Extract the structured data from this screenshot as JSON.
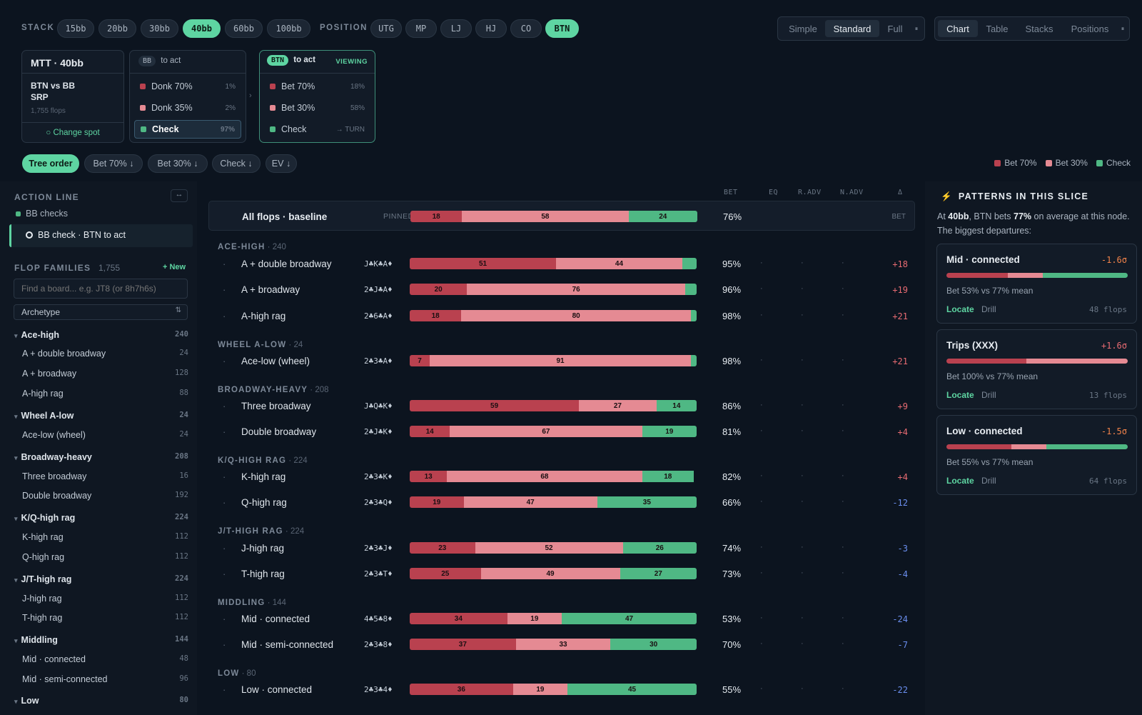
{
  "stack": {
    "label": "STACK",
    "options": [
      "15bb",
      "20bb",
      "30bb",
      "40bb",
      "60bb",
      "100bb"
    ],
    "active": 3
  },
  "position": {
    "label": "POSITION",
    "options": [
      "UTG",
      "MP",
      "LJ",
      "HJ",
      "CO",
      "BTN"
    ],
    "active": 5
  },
  "view_mode": {
    "options": [
      "Simple",
      "Standard",
      "Full"
    ],
    "active": 1,
    "icon": "pause-icon"
  },
  "view_tabs": {
    "options": [
      "Chart",
      "Table",
      "Stacks",
      "Positions"
    ],
    "active": 0,
    "icon": "pause-icon"
  },
  "spot": {
    "title": "MTT · 40bb",
    "line1": "BTN vs BB",
    "line2": "SRP",
    "flops": "1,755 flops",
    "change": "○ Change spot"
  },
  "bb_node": {
    "who": "BB",
    "act": "to act",
    "options": [
      {
        "label": "Donk 70%",
        "pct": "1%",
        "color": "#b9414f"
      },
      {
        "label": "Donk 35%",
        "pct": "2%",
        "color": "#e58a93"
      },
      {
        "label": "Check",
        "pct": "97%",
        "color": "#4fb884"
      }
    ]
  },
  "btn_node": {
    "who": "BTN",
    "act": "to act",
    "viewing": "VIEWING",
    "options": [
      {
        "label": "Bet 70%",
        "pct": "18%",
        "color": "#b9414f"
      },
      {
        "label": "Bet 30%",
        "pct": "58%",
        "color": "#e58a93"
      },
      {
        "label": "Check",
        "pct": "→ TURN",
        "color": "#4fb884"
      }
    ]
  },
  "sort_chips": [
    "Tree order",
    "Bet 70% ↓",
    "Bet 30% ↓",
    "Check ↓",
    "EV ↓"
  ],
  "legend": [
    {
      "label": "Bet 70%",
      "color": "#b9414f"
    },
    {
      "label": "Bet 30%",
      "color": "#e58a93"
    },
    {
      "label": "Check",
      "color": "#4fb884"
    }
  ],
  "action_line": {
    "title": "ACTION LINE",
    "icon": "↔",
    "items": [
      "BB checks",
      "BB check · BTN to act"
    ]
  },
  "flop_families": {
    "title": "FLOP FAMILIES",
    "count": "1,755",
    "new": "+ New",
    "search_placeholder": "Find a board... e.g. JT8 (or 8h7h6s)",
    "select": "Archetype"
  },
  "tree": [
    {
      "label": "Ace-high",
      "count": "240",
      "group": true
    },
    {
      "label": "A + double broadway",
      "count": "24"
    },
    {
      "label": "A + broadway",
      "count": "128"
    },
    {
      "label": "A-high rag",
      "count": "88"
    },
    {
      "label": "Wheel A-low",
      "count": "24",
      "group": true
    },
    {
      "label": "Ace-low (wheel)",
      "count": "24"
    },
    {
      "label": "Broadway-heavy",
      "count": "208",
      "group": true
    },
    {
      "label": "Three broadway",
      "count": "16"
    },
    {
      "label": "Double broadway",
      "count": "192"
    },
    {
      "label": "K/Q-high rag",
      "count": "224",
      "group": true
    },
    {
      "label": "K-high rag",
      "count": "112"
    },
    {
      "label": "Q-high rag",
      "count": "112"
    },
    {
      "label": "J/T-high rag",
      "count": "224",
      "group": true
    },
    {
      "label": "J-high rag",
      "count": "112"
    },
    {
      "label": "T-high rag",
      "count": "112"
    },
    {
      "label": "Middling",
      "count": "144",
      "group": true
    },
    {
      "label": "Mid · connected",
      "count": "48"
    },
    {
      "label": "Mid · semi-connected",
      "count": "96"
    },
    {
      "label": "Low",
      "count": "80",
      "group": true
    }
  ],
  "columns": [
    "BET",
    "EQ",
    "R.ADV",
    "N.ADV",
    "Δ"
  ],
  "baseline": {
    "label": "All flops · baseline",
    "pinned": "PINNED",
    "segs": [
      18,
      58,
      24
    ],
    "bet": "76%",
    "delta": "BET"
  },
  "groups": [
    {
      "name": "ACE-HIGH",
      "count": "240",
      "rows": [
        {
          "name": "A + double broadway",
          "board": "J♣K♣A♦",
          "segs": [
            51,
            44,
            5
          ],
          "bet": "95%",
          "delta": "+18"
        },
        {
          "name": "A + broadway",
          "board": "2♣J♣A♦",
          "segs": [
            20,
            76,
            4
          ],
          "bet": "96%",
          "delta": "+19"
        },
        {
          "name": "A-high rag",
          "board": "2♣6♣A♦",
          "segs": [
            18,
            80,
            2
          ],
          "bet": "98%",
          "delta": "+21"
        }
      ]
    },
    {
      "name": "WHEEL A-LOW",
      "count": "24",
      "rows": [
        {
          "name": "Ace-low (wheel)",
          "board": "2♣3♣A♦",
          "segs": [
            7,
            91,
            2
          ],
          "bet": "98%",
          "delta": "+21"
        }
      ]
    },
    {
      "name": "BROADWAY-HEAVY",
      "count": "208",
      "rows": [
        {
          "name": "Three broadway",
          "board": "J♣Q♣K♦",
          "segs": [
            59,
            27,
            14
          ],
          "bet": "86%",
          "delta": "+9"
        },
        {
          "name": "Double broadway",
          "board": "2♣J♣K♦",
          "segs": [
            14,
            67,
            19
          ],
          "bet": "81%",
          "delta": "+4"
        }
      ]
    },
    {
      "name": "K/Q-HIGH RAG",
      "count": "224",
      "rows": [
        {
          "name": "K-high rag",
          "board": "2♣3♣K♦",
          "segs": [
            13,
            68,
            18
          ],
          "bet": "82%",
          "delta": "+4"
        },
        {
          "name": "Q-high rag",
          "board": "2♣3♣Q♦",
          "segs": [
            19,
            47,
            35
          ],
          "bet": "66%",
          "delta": "-12"
        }
      ]
    },
    {
      "name": "J/T-HIGH RAG",
      "count": "224",
      "rows": [
        {
          "name": "J-high rag",
          "board": "2♣3♣J♦",
          "segs": [
            23,
            52,
            26
          ],
          "bet": "74%",
          "delta": "-3"
        },
        {
          "name": "T-high rag",
          "board": "2♣3♣T♦",
          "segs": [
            25,
            49,
            27
          ],
          "bet": "73%",
          "delta": "-4"
        }
      ]
    },
    {
      "name": "MIDDLING",
      "count": "144",
      "rows": [
        {
          "name": "Mid · connected",
          "board": "4♣5♣8♦",
          "segs": [
            34,
            19,
            47
          ],
          "bet": "53%",
          "delta": "-24"
        },
        {
          "name": "Mid · semi-connected",
          "board": "2♣3♣8♦",
          "segs": [
            37,
            33,
            30
          ],
          "bet": "70%",
          "delta": "-7"
        }
      ]
    },
    {
      "name": "LOW",
      "count": "80",
      "rows": [
        {
          "name": "Low · connected",
          "board": "2♣3♣4♦",
          "segs": [
            36,
            19,
            45
          ],
          "bet": "55%",
          "delta": "-22"
        }
      ]
    }
  ],
  "patterns": {
    "title": "PATTERNS IN THIS SLICE",
    "icon": "bolt-icon",
    "intro_a": "At ",
    "stack": "40bb",
    "intro_b": ", BTN bets ",
    "mean": "77%",
    "intro_c": " on average at this node. The biggest departures:",
    "cards": [
      {
        "title": "Mid · connected",
        "sigma": "-1.6σ",
        "segs": [
          34,
          19,
          47
        ],
        "desc": "Bet 53% vs 77% mean",
        "flops": "48 flops"
      },
      {
        "title": "Trips (XXX)",
        "sigma": "+1.6σ",
        "segs": [
          44,
          56,
          0
        ],
        "desc": "Bet 100% vs 77% mean",
        "flops": "13 flops"
      },
      {
        "title": "Low · connected",
        "sigma": "-1.5σ",
        "segs": [
          36,
          19,
          45
        ],
        "desc": "Bet 55% vs 77% mean",
        "flops": "64 flops"
      }
    ],
    "locate": "Locate",
    "drill": "Drill"
  }
}
